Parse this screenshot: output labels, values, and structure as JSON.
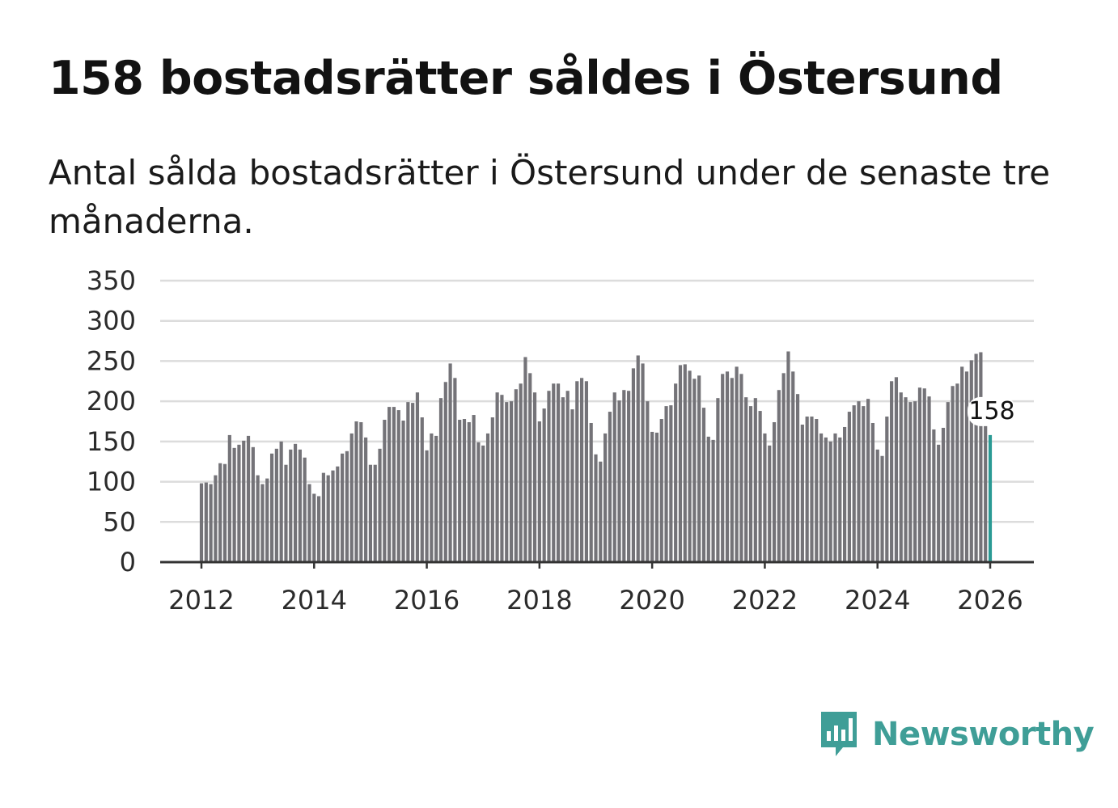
{
  "header": {
    "title": "158 bostadsrätter såldes i Östersund",
    "subtitle": "Antal sålda bostadsrätter i Östersund under de senaste tre månaderna."
  },
  "brand": {
    "name": "Newsworthy",
    "color": "#3f9e97"
  },
  "colors": {
    "bar": "#747378",
    "highlight": "#2a9a94",
    "grid": "#dcdcdc",
    "axis": "#333333"
  },
  "chart_data": {
    "type": "bar",
    "title": "158 bostadsrätter såldes i Östersund",
    "xlabel": "",
    "ylabel": "",
    "ylim": [
      0,
      350
    ],
    "yticks": [
      0,
      50,
      100,
      150,
      200,
      250,
      300,
      350
    ],
    "xticks": [
      "2012",
      "2014",
      "2016",
      "2018",
      "2020",
      "2022",
      "2024",
      "2026"
    ],
    "x_start_year": 2012,
    "x_end_year": 2026,
    "grid": true,
    "highlight": {
      "date": "2026-01",
      "value": 158,
      "label": "158"
    },
    "series": [
      {
        "name": "Sålda bostadsrätter",
        "start": "2012-01",
        "values": [
          98,
          99,
          97,
          108,
          123,
          122,
          158,
          142,
          146,
          151,
          157,
          143,
          108,
          97,
          104,
          135,
          141,
          150,
          121,
          140,
          147,
          140,
          130,
          97,
          85,
          82,
          111,
          108,
          114,
          119,
          135,
          138,
          160,
          175,
          174,
          155,
          121,
          121,
          141,
          177,
          193,
          193,
          189,
          176,
          199,
          198,
          211,
          180,
          139,
          160,
          157,
          204,
          224,
          247,
          229,
          177,
          178,
          174,
          183,
          149,
          145,
          160,
          180,
          211,
          208,
          199,
          200,
          215,
          222,
          255,
          235,
          211,
          175,
          191,
          213,
          222,
          222,
          205,
          213,
          190,
          225,
          229,
          225,
          173,
          134,
          125,
          160,
          187,
          211,
          201,
          214,
          213,
          241,
          257,
          247,
          200,
          162,
          161,
          178,
          194,
          195,
          222,
          245,
          246,
          238,
          228,
          232,
          192,
          156,
          152,
          204,
          234,
          237,
          229,
          243,
          234,
          205,
          194,
          204,
          188,
          160,
          145,
          174,
          214,
          235,
          262,
          237,
          209,
          171,
          181,
          181,
          178,
          160,
          155,
          150,
          160,
          155,
          168,
          187,
          195,
          200,
          194,
          203,
          173,
          140,
          132,
          181,
          225,
          230,
          211,
          205,
          199,
          200,
          217,
          216,
          206,
          165,
          146,
          167,
          199,
          219,
          222,
          243,
          237,
          251,
          259,
          261,
          172,
          158
        ]
      }
    ]
  }
}
